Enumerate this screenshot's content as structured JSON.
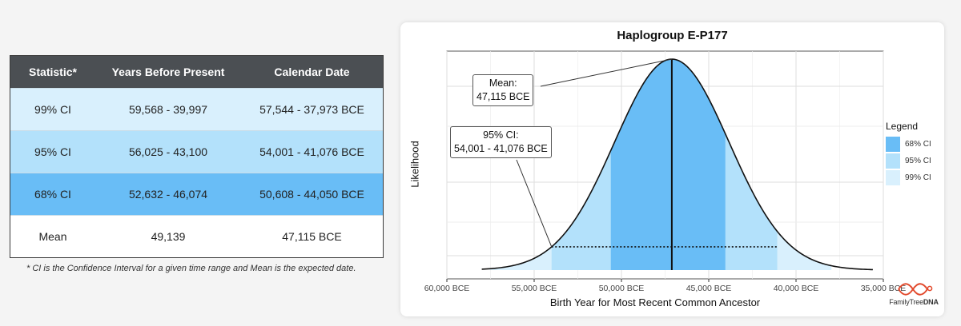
{
  "table": {
    "headers": [
      "Statistic*",
      "Years Before Present",
      "Calendar Date"
    ],
    "rows": [
      {
        "statistic": "99% CI",
        "ybp": "59,568 - 39,997",
        "calendar": "57,544 - 37,973 BCE",
        "color": "#d9f0fd"
      },
      {
        "statistic": "95% CI",
        "ybp": "56,025 - 43,100",
        "calendar": "54,001 - 41,076 BCE",
        "color": "#b3e1fb"
      },
      {
        "statistic": "68% CI",
        "ybp": "52,632 - 46,074",
        "calendar": "50,608 - 44,050 BCE",
        "color": "#69bdf6"
      },
      {
        "statistic": "Mean",
        "ybp": "49,139",
        "calendar": "47,115 BCE",
        "color": "#ffffff"
      }
    ],
    "footnote": "* CI is the Confidence Interval for a given time range and Mean is the expected date."
  },
  "chart_data": {
    "type": "area",
    "title": "Haplogroup E-P177",
    "xlabel": "Birth Year for Most Recent Common Ancestor",
    "ylabel": "Likelihood",
    "x_axis_unit": "BCE",
    "xlim": [
      60000,
      35000
    ],
    "x_ticks": [
      {
        "value": 60000,
        "label": "60,000 BCE"
      },
      {
        "value": 55000,
        "label": "55,000 BCE"
      },
      {
        "value": 50000,
        "label": "50,000 BCE"
      },
      {
        "value": 45000,
        "label": "45,000 BCE"
      },
      {
        "value": 40000,
        "label": "40,000 BCE"
      },
      {
        "value": 35000,
        "label": "35,000 BCE"
      }
    ],
    "distribution": {
      "shape": "normal",
      "mean": 47115,
      "curve_range": [
        58000,
        35600
      ]
    },
    "bands": [
      {
        "name": "99% CI",
        "from": 57544,
        "to": 37973,
        "color": "#d9f0fd"
      },
      {
        "name": "95% CI",
        "from": 54001,
        "to": 41076,
        "color": "#b3e1fb"
      },
      {
        "name": "68% CI",
        "from": 50608,
        "to": 44050,
        "color": "#69bdf6"
      }
    ],
    "mean_line": {
      "value": 47115
    },
    "dotted_line": {
      "from": 54001,
      "to": 41076
    },
    "annotations": [
      {
        "id": "mean",
        "line1": "Mean:",
        "line2": "47,115 BCE"
      },
      {
        "id": "ci95",
        "line1": "95% CI:",
        "line2": "54,001 - 41,076 BCE"
      }
    ],
    "legend": {
      "title": "Legend",
      "position": "right",
      "items": [
        {
          "label": "68% CI",
          "color": "#69bdf6"
        },
        {
          "label": "95% CI",
          "color": "#b3e1fb"
        },
        {
          "label": "99% CI",
          "color": "#d9f0fd"
        }
      ]
    },
    "grid": true
  },
  "branding": {
    "logo_part1": "FamilyTree",
    "logo_part2": "DNA",
    "logo_icon": "dna-helix-icon",
    "accent": "#e2492c"
  }
}
